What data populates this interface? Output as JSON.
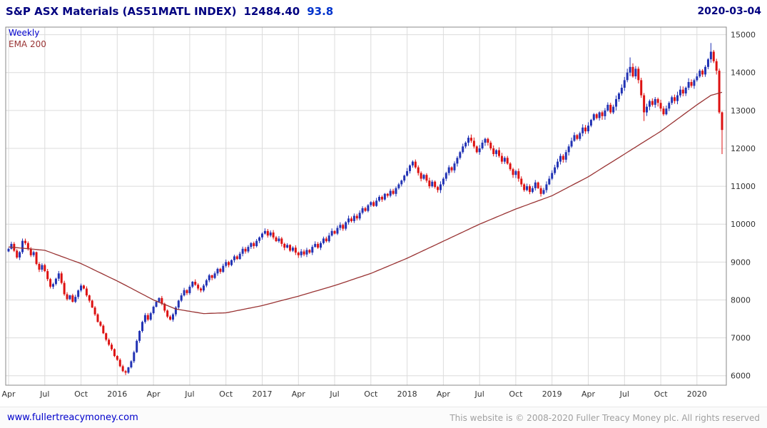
{
  "header": {
    "title": "S&P ASX Materials (AS51MATL INDEX)",
    "last_price": "12484.40",
    "change": "93.8",
    "date": "2020-03-04"
  },
  "legend": {
    "timeframe": "Weekly",
    "indicator": "EMA 200"
  },
  "footer": {
    "link": "www.fullertreacymoney.com",
    "copyright": "This website is © 2008-2020 Fuller Treacy Money plc. All rights reserved"
  },
  "colors": {
    "up": "#2233b4",
    "down": "#dd1111",
    "ema": "#993333",
    "title": "#000080",
    "change": "#0033cc",
    "link": "#0000cc",
    "grid": "#dcdcdc",
    "axis_text": "#333333",
    "border": "#888888",
    "footer_text": "#a0a0a0"
  },
  "chart_data": {
    "type": "candlestick",
    "timeframe": "Weekly",
    "title": "S&P ASX Materials (AS51MATL INDEX)",
    "last_close": 12484.4,
    "change": 93.8,
    "date": "2020-03-04",
    "ylim": [
      5750,
      15200
    ],
    "y_ticks": [
      6000,
      7000,
      8000,
      9000,
      10000,
      11000,
      12000,
      13000,
      14000,
      15000
    ],
    "x_ticks": [
      {
        "week": 0,
        "label": "Apr"
      },
      {
        "week": 13,
        "label": "Jul"
      },
      {
        "week": 26,
        "label": "Oct"
      },
      {
        "week": 39,
        "label": "2016"
      },
      {
        "week": 52,
        "label": "Apr"
      },
      {
        "week": 65,
        "label": "Jul"
      },
      {
        "week": 78,
        "label": "Oct"
      },
      {
        "week": 91,
        "label": "2017"
      },
      {
        "week": 104,
        "label": "Apr"
      },
      {
        "week": 117,
        "label": "Jul"
      },
      {
        "week": 130,
        "label": "Oct"
      },
      {
        "week": 143,
        "label": "2018"
      },
      {
        "week": 156,
        "label": "Apr"
      },
      {
        "week": 169,
        "label": "Jul"
      },
      {
        "week": 182,
        "label": "Oct"
      },
      {
        "week": 195,
        "label": "2019"
      },
      {
        "week": 208,
        "label": "Apr"
      },
      {
        "week": 221,
        "label": "Jul"
      },
      {
        "week": 234,
        "label": "Oct"
      },
      {
        "week": 247,
        "label": "2020"
      }
    ],
    "closes": [
      9350,
      9480,
      9300,
      9120,
      9260,
      9560,
      9500,
      9350,
      9180,
      9260,
      8950,
      8800,
      8920,
      8760,
      8550,
      8350,
      8420,
      8560,
      8700,
      8450,
      8150,
      8020,
      8120,
      7950,
      8080,
      8250,
      8380,
      8300,
      8120,
      7980,
      7800,
      7620,
      7420,
      7320,
      7120,
      6950,
      6820,
      6700,
      6520,
      6420,
      6250,
      6120,
      6080,
      6220,
      6380,
      6620,
      6920,
      7180,
      7420,
      7600,
      7480,
      7650,
      7820,
      7950,
      8050,
      7900,
      7720,
      7560,
      7480,
      7620,
      7800,
      7980,
      8120,
      8260,
      8180,
      8350,
      8480,
      8400,
      8300,
      8250,
      8380,
      8520,
      8650,
      8580,
      8700,
      8820,
      8740,
      8900,
      9000,
      8920,
      9050,
      9150,
      9080,
      9220,
      9350,
      9280,
      9400,
      9500,
      9420,
      9560,
      9650,
      9750,
      9820,
      9700,
      9780,
      9650,
      9550,
      9620,
      9480,
      9380,
      9450,
      9300,
      9380,
      9250,
      9180,
      9280,
      9200,
      9320,
      9250,
      9400,
      9480,
      9380,
      9500,
      9620,
      9550,
      9700,
      9820,
      9750,
      9900,
      9980,
      9880,
      10050,
      10150,
      10080,
      10220,
      10150,
      10300,
      10420,
      10350,
      10500,
      10580,
      10480,
      10620,
      10720,
      10650,
      10800,
      10750,
      10880,
      10800,
      10950,
      11050,
      11150,
      11280,
      11400,
      11550,
      11650,
      11500,
      11350,
      11200,
      11300,
      11150,
      11000,
      11120,
      10980,
      10900,
      11050,
      11200,
      11350,
      11500,
      11420,
      11600,
      11750,
      11900,
      12050,
      12150,
      12280,
      12200,
      12050,
      11900,
      12000,
      12150,
      12250,
      12150,
      12000,
      11850,
      11950,
      11800,
      11650,
      11750,
      11600,
      11450,
      11300,
      11400,
      11200,
      11050,
      10900,
      11000,
      10850,
      10950,
      11100,
      10950,
      10800,
      10900,
      11050,
      11200,
      11350,
      11500,
      11650,
      11800,
      11700,
      11900,
      12050,
      12200,
      12350,
      12250,
      12400,
      12550,
      12450,
      12600,
      12750,
      12900,
      12800,
      12950,
      12850,
      13000,
      13150,
      12950,
      13100,
      13300,
      13450,
      13600,
      13800,
      14000,
      14150,
      13900,
      14100,
      13800,
      13400,
      12950,
      13100,
      13250,
      13150,
      13300,
      13200,
      13050,
      12900,
      13050,
      13200,
      13350,
      13250,
      13400,
      13550,
      13450,
      13600,
      13750,
      13650,
      13800,
      13900,
      14050,
      13950,
      14150,
      14350,
      14550,
      14300,
      14050,
      12950,
      12484.4
    ],
    "ema": {
      "label": "EMA 200",
      "period": 200,
      "anchors": [
        [
          0,
          9400
        ],
        [
          13,
          9310
        ],
        [
          26,
          8960
        ],
        [
          39,
          8500
        ],
        [
          52,
          8000
        ],
        [
          60,
          7760
        ],
        [
          70,
          7640
        ],
        [
          78,
          7660
        ],
        [
          91,
          7850
        ],
        [
          104,
          8100
        ],
        [
          117,
          8380
        ],
        [
          130,
          8700
        ],
        [
          143,
          9100
        ],
        [
          156,
          9550
        ],
        [
          169,
          10000
        ],
        [
          182,
          10400
        ],
        [
          195,
          10750
        ],
        [
          208,
          11250
        ],
        [
          221,
          11850
        ],
        [
          234,
          12450
        ],
        [
          247,
          13150
        ],
        [
          252,
          13400
        ],
        [
          256,
          13480
        ]
      ]
    },
    "wick_overrides": {
      "5": {
        "high": 9620
      },
      "42": {
        "low": 6020
      },
      "223": {
        "high": 14400
      },
      "228": {
        "low": 12720
      },
      "252": {
        "high": 14780
      },
      "256": {
        "low": 11850
      }
    }
  }
}
